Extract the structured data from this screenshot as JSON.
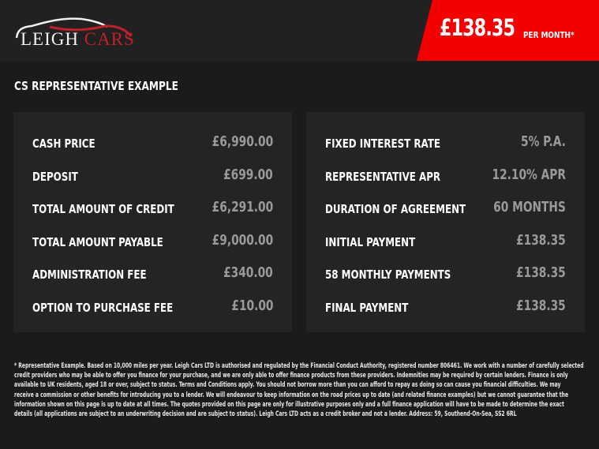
{
  "header": {
    "logo_text_1": "LEIGH",
    "logo_text_2": "CARS",
    "price": "£138.35",
    "per_month": "PER MONTH*",
    "brand_red": "#f40000"
  },
  "title": "CS REPRESENTATIVE EXAMPLE",
  "left": [
    {
      "label": "CASH PRICE",
      "value": "£6,990.00"
    },
    {
      "label": "DEPOSIT",
      "value": "£699.00"
    },
    {
      "label": "TOTAL AMOUNT OF CREDIT",
      "value": "£6,291.00"
    },
    {
      "label": "TOTAL AMOUNT PAYABLE",
      "value": "£9,000.00"
    },
    {
      "label": "ADMINISTRATION FEE",
      "value": "£340.00"
    },
    {
      "label": "OPTION TO PURCHASE FEE",
      "value": "£10.00"
    }
  ],
  "right": [
    {
      "label": "FIXED INTEREST RATE",
      "value": "5% P.A."
    },
    {
      "label": "REPRESENTATIVE APR",
      "value": "12.10% APR"
    },
    {
      "label": "DURATION OF AGREEMENT",
      "value": "60 MONTHS"
    },
    {
      "label": "INITIAL PAYMENT",
      "value": "£138.35"
    },
    {
      "label": "58 MONTHLY PAYMENTS",
      "value": "£138.35"
    },
    {
      "label": "FINAL PAYMENT",
      "value": "£138.35"
    }
  ],
  "footer": [
    "* Representative Example. Based on 10,000 miles per year. Leigh Cars LTD is authorised and regulated by the Financial Conduct Authority, registered number 806461. We work with a number of carefully selected",
    "credit providers who may be able to offer you finance for your purchase, and we are only able to offer finance products from these providers. Indemnities may be required by certain lenders. Finance is only",
    "available to UK residents, aged 18 or over, subject to status. Terms and Conditions apply. You should not borrow more than you can afford to repay as doing so can cause you financial difficulties. We may",
    "receive a commission or other benefits for introducing you to a lender. We will endeavour to keep information on the road prices up to date (and related finance examples) but we cannot guarantee that the",
    "information shown on this page is up to date at all times. The quotes provided on this page are only for illustrative purposes only and a full finance application will have to be made to determine the exact",
    "details (all applications are subject to an underwriting decision and are subject to status). Leigh Cars LTD acts as a credit broker and not a lender. Address:  59, Southend-On-Sea, SS2 6RL"
  ]
}
